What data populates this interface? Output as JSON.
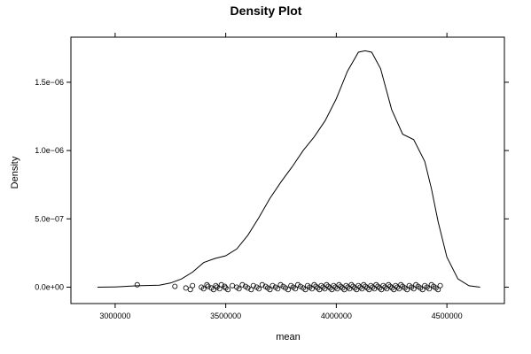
{
  "chart_data": {
    "type": "line",
    "title": "Density Plot",
    "xlabel": "mean",
    "ylabel": "Density",
    "xlim": [
      2800000,
      4760000
    ],
    "ylim": [
      -1.2e-07,
      1.83e-06
    ],
    "x_ticks": [
      {
        "value": 3000000,
        "label": "3000000"
      },
      {
        "value": 3500000,
        "label": "3500000"
      },
      {
        "value": 4000000,
        "label": "4000000"
      },
      {
        "value": 4500000,
        "label": "4500000"
      }
    ],
    "y_ticks": [
      {
        "value": 0,
        "label": "0.0e+00"
      },
      {
        "value": 5e-07,
        "label": "5.0e−07"
      },
      {
        "value": 1e-06,
        "label": "1.0e−06"
      },
      {
        "value": 1.5e-06,
        "label": "1.5e−06"
      }
    ],
    "grid": false,
    "series": [
      {
        "x": [
          2920000,
          3000000,
          3100000,
          3200000,
          3250000,
          3300000,
          3350000,
          3400000,
          3450000,
          3500000,
          3550000,
          3600000,
          3650000,
          3700000,
          3750000,
          3800000,
          3850000,
          3900000,
          3950000,
          4000000,
          4050000,
          4100000,
          4130000,
          4160000,
          4200000,
          4250000,
          4300000,
          4350000,
          4400000,
          4430000,
          4460000,
          4500000,
          4550000,
          4600000,
          4650000
        ],
        "y": [
          0,
          2e-09,
          1e-08,
          1.5e-08,
          3e-08,
          6e-08,
          1.1e-07,
          1.8e-07,
          2.1e-07,
          2.3e-07,
          2.8e-07,
          3.8e-07,
          5.1e-07,
          6.5e-07,
          7.7e-07,
          8.8e-07,
          1e-06,
          1.1e-06,
          1.22e-06,
          1.38e-06,
          1.58e-06,
          1.72e-06,
          1.73e-06,
          1.72e-06,
          1.6e-06,
          1.3e-06,
          1.12e-06,
          1.08e-06,
          9.2e-07,
          7.2e-07,
          4.8e-07,
          2.2e-07,
          6e-08,
          1e-08,
          0
        ]
      }
    ],
    "rug": [
      3100000,
      3270000,
      3320000,
      3340000,
      3350000,
      3390000,
      3400000,
      3415000,
      3420000,
      3435000,
      3445000,
      3455000,
      3460000,
      3472000,
      3480000,
      3495000,
      3500000,
      3510000,
      3530000,
      3550000,
      3560000,
      3575000,
      3590000,
      3600000,
      3615000,
      3625000,
      3640000,
      3650000,
      3665000,
      3680000,
      3690000,
      3700000,
      3712000,
      3725000,
      3735000,
      3748000,
      3760000,
      3770000,
      3782000,
      3795000,
      3805000,
      3815000,
      3826000,
      3838000,
      3850000,
      3860000,
      3870000,
      3880000,
      3890000,
      3900000,
      3908000,
      3916000,
      3924000,
      3932000,
      3940000,
      3948000,
      3956000,
      3964000,
      3972000,
      3980000,
      3988000,
      3996000,
      4004000,
      4012000,
      4020000,
      4028000,
      4036000,
      4044000,
      4052000,
      4060000,
      4068000,
      4076000,
      4084000,
      4092000,
      4100000,
      4108000,
      4116000,
      4124000,
      4132000,
      4140000,
      4148000,
      4156000,
      4164000,
      4172000,
      4180000,
      4188000,
      4196000,
      4204000,
      4212000,
      4220000,
      4228000,
      4236000,
      4244000,
      4252000,
      4260000,
      4268000,
      4276000,
      4284000,
      4292000,
      4300000,
      4310000,
      4320000,
      4330000,
      4340000,
      4350000,
      4360000,
      4370000,
      4380000,
      4390000,
      4400000,
      4410000,
      4420000,
      4430000,
      4440000,
      4450000,
      4460000,
      4470000
    ]
  }
}
